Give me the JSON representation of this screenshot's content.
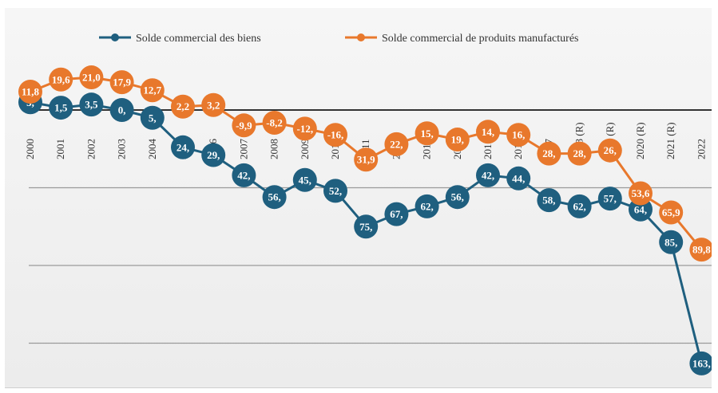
{
  "chart_data": {
    "type": "line",
    "categories": [
      "2000",
      "2001",
      "2002",
      "2003",
      "2004",
      "2005",
      "2006",
      "2007",
      "2008",
      "2009",
      "2010",
      "2011",
      "2012",
      "2013",
      "2014",
      "2015",
      "2016",
      "2017",
      "2018 (R)",
      "2019 (R)",
      "2020 (R)",
      "2021 (R)",
      "2022"
    ],
    "series": [
      {
        "name": "Solde commercial des biens",
        "color": "#1f5f7f",
        "values": [
          5.0,
          1.5,
          3.5,
          0.0,
          -5.0,
          -24.0,
          -29.0,
          -42.0,
          -56.0,
          -45.0,
          -52.0,
          -75.0,
          -67.0,
          -62.0,
          -56.0,
          -42.0,
          -44.0,
          -58.0,
          -62.0,
          -57.0,
          -64.0,
          -85.0,
          -163.0
        ],
        "labels": [
          "5,",
          "1,5",
          "3,5",
          "0,",
          "5,",
          "24,",
          "29,",
          "42,",
          "56,",
          "45,",
          "52,",
          "75,",
          "67,",
          "62,",
          "56,",
          "42,",
          "44,",
          "58,",
          "62,",
          "57,",
          "64,",
          "85,",
          "163,"
        ]
      },
      {
        "name": "Solde commercial de produits manufacturés",
        "color": "#e8782c",
        "values": [
          11.8,
          19.6,
          21.0,
          17.9,
          12.7,
          2.2,
          3.2,
          -9.9,
          -8.2,
          -12.0,
          -16.0,
          -31.9,
          -22.0,
          -15.0,
          -19.0,
          -14.0,
          -16.0,
          -28.0,
          -28.0,
          -26.0,
          -53.6,
          -65.9,
          -89.8
        ],
        "labels": [
          "11,8",
          "19,6",
          "21,0",
          "17,9",
          "12,7",
          "2,2",
          "3,2",
          "-9,9",
          "-8,2",
          "-12,",
          "-16,",
          "31,9",
          "22,",
          "15,",
          "19,",
          "14,",
          "16,",
          "28,",
          "28,",
          "26,",
          "53,6",
          "65,9",
          "89,8"
        ]
      }
    ],
    "ylim": [
      -180,
      30
    ],
    "grid": true,
    "legend": "top-center"
  }
}
